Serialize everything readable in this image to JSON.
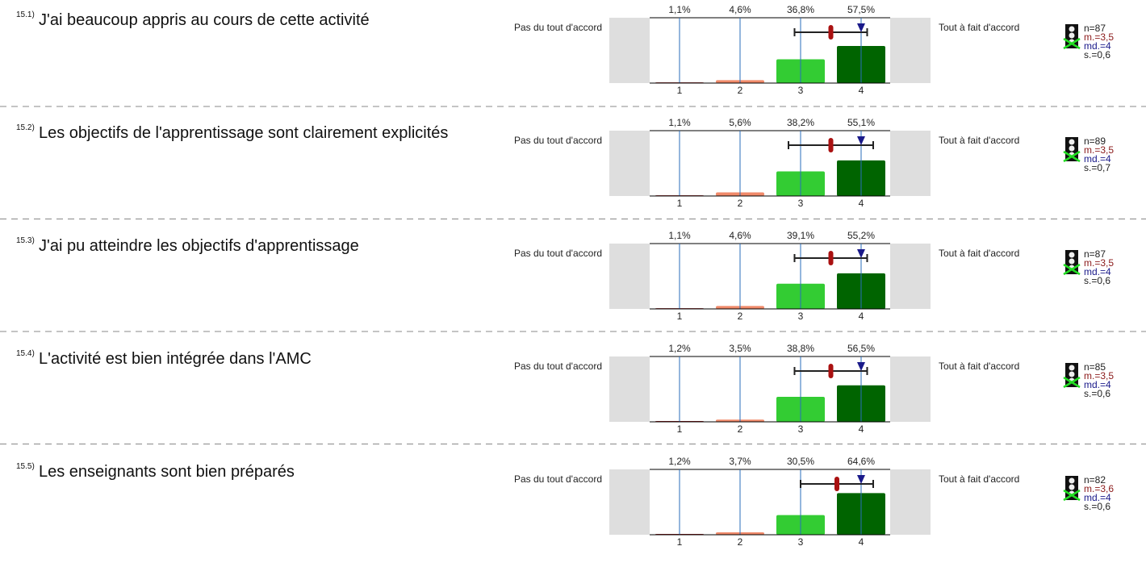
{
  "chart_data": [
    {
      "type": "bar",
      "number": "15.1)",
      "title": "J'ai beaucoup  appris au cours de cette activité",
      "left_label": "Pas du tout d'accord",
      "right_label": "Tout à fait d'accord",
      "categories": [
        "1",
        "2",
        "3",
        "4"
      ],
      "values": [
        1.1,
        4.6,
        36.8,
        57.5
      ],
      "value_labels": [
        "1,1%",
        "4,6%",
        "36,8%",
        "57,5%"
      ],
      "colors": [
        "#8b1a1a",
        "#f08a6a",
        "#33cc33",
        "#006400"
      ],
      "n_label": "n=87",
      "mean": 3.5,
      "mean_label": "m.=3,5",
      "median": 4,
      "median_label": "md.=4",
      "sd": 0.6,
      "sd_label": "s.=0,6"
    },
    {
      "type": "bar",
      "number": "15.2)",
      "title": "Les objectifs de l'apprentissage sont clairement explicités",
      "left_label": "Pas du tout d'accord",
      "right_label": "Tout à fait d'accord",
      "categories": [
        "1",
        "2",
        "3",
        "4"
      ],
      "values": [
        1.1,
        5.6,
        38.2,
        55.1
      ],
      "value_labels": [
        "1,1%",
        "5,6%",
        "38,2%",
        "55,1%"
      ],
      "colors": [
        "#8b1a1a",
        "#f08a6a",
        "#33cc33",
        "#006400"
      ],
      "n_label": "n=89",
      "mean": 3.5,
      "mean_label": "m.=3,5",
      "median": 4,
      "median_label": "md.=4",
      "sd": 0.7,
      "sd_label": "s.=0,7"
    },
    {
      "type": "bar",
      "number": "15.3)",
      "title": "J'ai pu atteindre les objectifs d'apprentissage",
      "left_label": "Pas du tout d'accord",
      "right_label": "Tout à fait d'accord",
      "categories": [
        "1",
        "2",
        "3",
        "4"
      ],
      "values": [
        1.1,
        4.6,
        39.1,
        55.2
      ],
      "value_labels": [
        "1,1%",
        "4,6%",
        "39,1%",
        "55,2%"
      ],
      "colors": [
        "#8b1a1a",
        "#f08a6a",
        "#33cc33",
        "#006400"
      ],
      "n_label": "n=87",
      "mean": 3.5,
      "mean_label": "m.=3,5",
      "median": 4,
      "median_label": "md.=4",
      "sd": 0.6,
      "sd_label": "s.=0,6"
    },
    {
      "type": "bar",
      "number": "15.4)",
      "title": "L'activité est bien intégrée dans l'AMC",
      "left_label": "Pas du tout d'accord",
      "right_label": "Tout à fait d'accord",
      "categories": [
        "1",
        "2",
        "3",
        "4"
      ],
      "values": [
        1.2,
        3.5,
        38.8,
        56.5
      ],
      "value_labels": [
        "1,2%",
        "3,5%",
        "38,8%",
        "56,5%"
      ],
      "colors": [
        "#8b1a1a",
        "#f08a6a",
        "#33cc33",
        "#006400"
      ],
      "n_label": "n=85",
      "mean": 3.5,
      "mean_label": "m.=3,5",
      "median": 4,
      "median_label": "md.=4",
      "sd": 0.6,
      "sd_label": "s.=0,6"
    },
    {
      "type": "bar",
      "number": "15.5)",
      "title": "Les enseignants sont bien préparés",
      "left_label": "Pas du tout d'accord",
      "right_label": "Tout à fait d'accord",
      "categories": [
        "1",
        "2",
        "3",
        "4"
      ],
      "values": [
        1.2,
        3.7,
        30.5,
        64.6
      ],
      "value_labels": [
        "1,2%",
        "3,7%",
        "30,5%",
        "64,6%"
      ],
      "colors": [
        "#8b1a1a",
        "#f08a6a",
        "#33cc33",
        "#006400"
      ],
      "n_label": "n=82",
      "mean": 3.6,
      "mean_label": "m.=3,6",
      "median": 4,
      "median_label": "md.=4",
      "sd": 0.6,
      "sd_label": "s.=0,6"
    }
  ]
}
